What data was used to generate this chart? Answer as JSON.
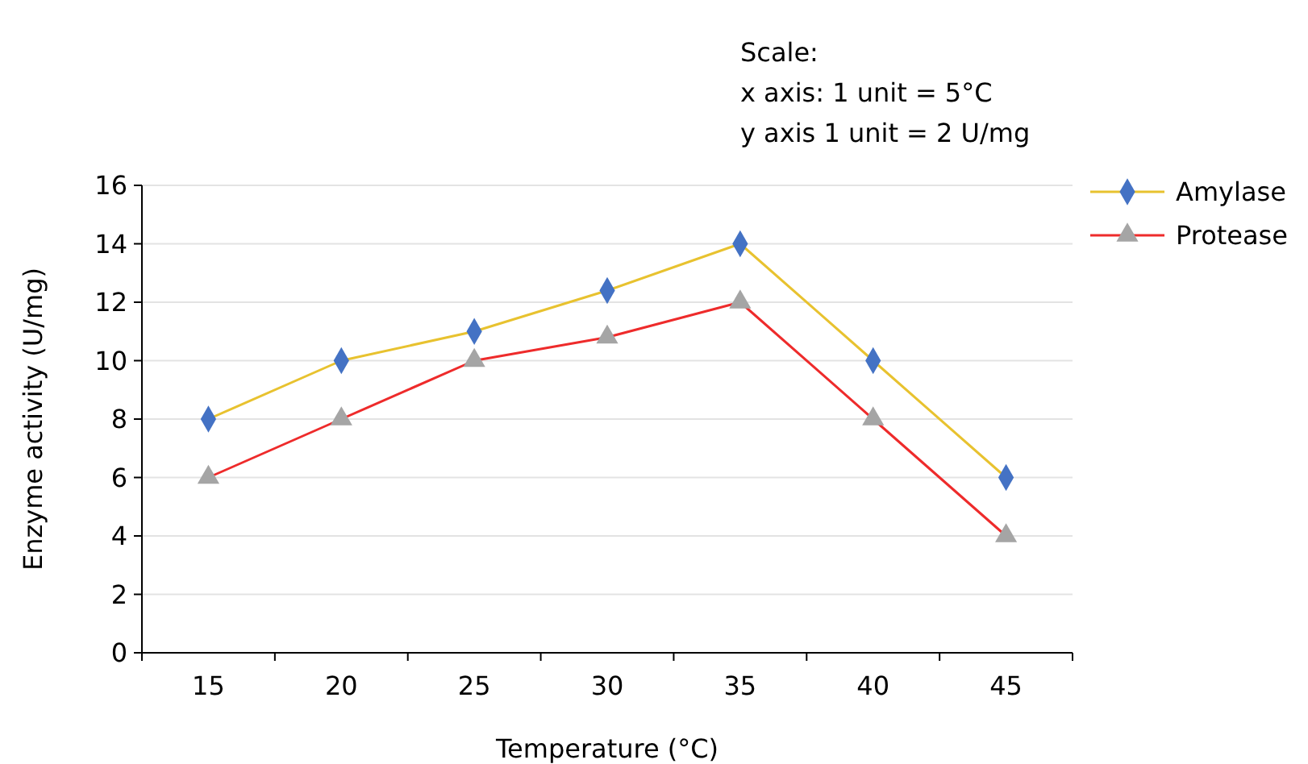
{
  "chart_data": {
    "type": "line",
    "xlabel": "Temperature (°C)",
    "ylabel": "Enzyme activity (U/mg)",
    "categories": [
      "15",
      "20",
      "25",
      "30",
      "35",
      "40",
      "45"
    ],
    "series": [
      {
        "name": "Amylase",
        "color": "#e8c22f",
        "colors": [
          "#4472c4",
          "#4472c4",
          "#4472c4",
          "#4472c4",
          "#4472c4",
          "#4472c4",
          "#4472c4"
        ],
        "marker": "diamond",
        "values": [
          8,
          10,
          11,
          12.4,
          14,
          10,
          6
        ]
      },
      {
        "name": "Protease",
        "color": "#ee2b2b",
        "colors": [
          "#a5a5a5",
          "#a5a5a5",
          "#a5a5a5",
          "#a5a5a5",
          "#a5a5a5",
          "#a5a5a5",
          "#a5a5a5"
        ],
        "marker": "triangle",
        "values": [
          6,
          8,
          10,
          10.8,
          12,
          8,
          4
        ]
      }
    ],
    "ylim": [
      0,
      16
    ],
    "yticks": [
      0,
      2,
      4,
      6,
      8,
      10,
      12,
      14,
      16
    ],
    "grid": "y",
    "legend": "top right",
    "line_style": "solid",
    "annotations": [
      "Scale:",
      "x axis: 1 unit = 5°C",
      "y axis 1 unit = 2 U/mg"
    ]
  }
}
